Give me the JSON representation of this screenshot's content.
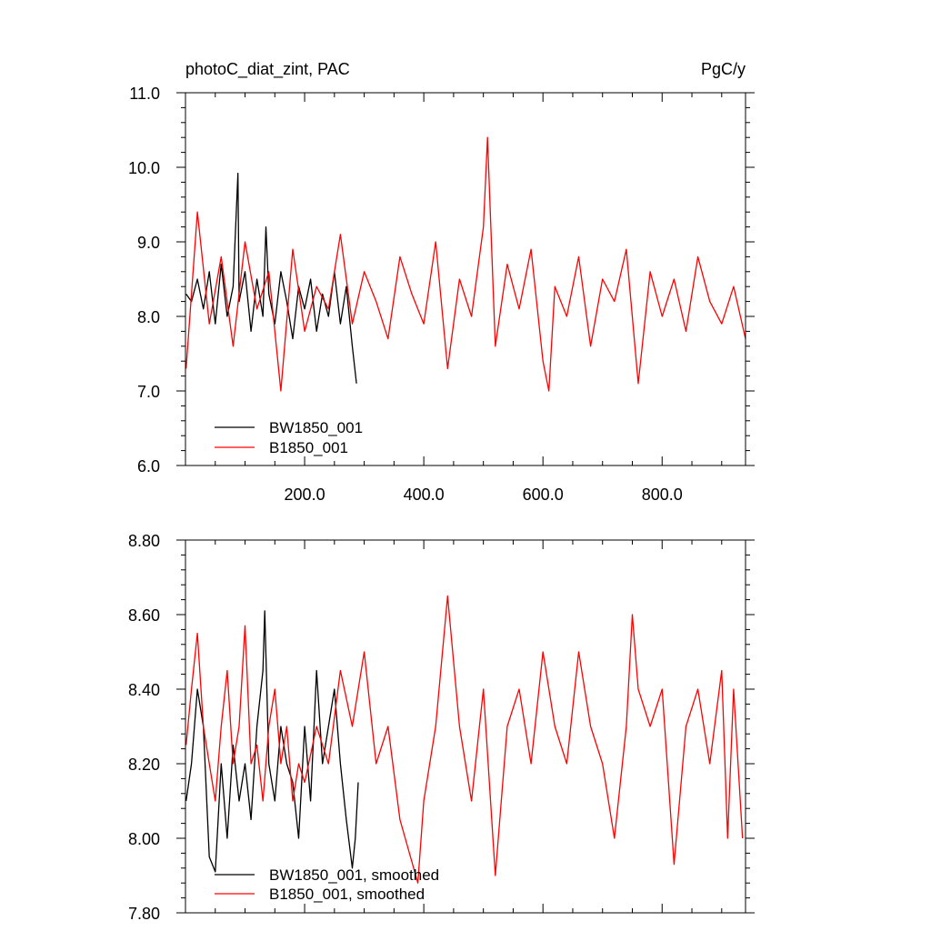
{
  "chart_data": [
    {
      "type": "line",
      "title_left": "photoC_diat_zint, PAC",
      "title_right": "PgC/y",
      "xlim": [
        0,
        940
      ],
      "ylim": [
        6.0,
        11.0
      ],
      "xticks": [
        200,
        400,
        600,
        800
      ],
      "xtick_labels": [
        "200.0",
        "400.0",
        "600.0",
        "800.0"
      ],
      "yticks": [
        6.0,
        7.0,
        8.0,
        9.0,
        10.0,
        11.0
      ],
      "ytick_labels": [
        "6.0",
        "7.0",
        "8.0",
        "9.0",
        "10.0",
        "11.0"
      ],
      "legend": "bottom-left",
      "series": [
        {
          "name": "BW1850_001",
          "color": "#000000",
          "x": [
            1,
            10,
            20,
            30,
            40,
            50,
            60,
            70,
            80,
            88,
            90,
            100,
            110,
            120,
            130,
            135,
            140,
            150,
            160,
            170,
            180,
            190,
            200,
            210,
            220,
            230,
            240,
            250,
            260,
            270,
            280,
            287
          ],
          "values": [
            8.3,
            8.2,
            8.5,
            8.1,
            8.6,
            7.9,
            8.7,
            8.0,
            8.4,
            9.92,
            8.2,
            8.6,
            7.8,
            8.5,
            8.0,
            9.2,
            8.3,
            7.9,
            8.6,
            8.2,
            7.7,
            8.4,
            8.1,
            8.5,
            7.8,
            8.3,
            8.0,
            8.6,
            7.9,
            8.4,
            7.6,
            7.1
          ]
        },
        {
          "name": "B1850_001",
          "color": "#ff0000",
          "x": [
            1,
            20,
            40,
            60,
            80,
            100,
            120,
            140,
            160,
            180,
            200,
            220,
            240,
            260,
            280,
            300,
            320,
            340,
            360,
            380,
            400,
            420,
            440,
            460,
            480,
            500,
            507,
            520,
            540,
            560,
            580,
            600,
            610,
            620,
            640,
            660,
            680,
            700,
            720,
            740,
            760,
            780,
            800,
            820,
            840,
            860,
            880,
            900,
            920,
            940
          ],
          "values": [
            7.3,
            9.4,
            7.9,
            8.8,
            7.6,
            9.0,
            8.1,
            8.6,
            7.0,
            8.9,
            7.8,
            8.4,
            8.1,
            9.1,
            7.9,
            8.6,
            8.2,
            7.7,
            8.8,
            8.3,
            7.9,
            9.0,
            7.3,
            8.5,
            8.0,
            9.2,
            10.4,
            7.6,
            8.7,
            8.1,
            8.9,
            7.4,
            7.0,
            8.4,
            8.0,
            8.8,
            7.6,
            8.5,
            8.2,
            8.9,
            7.1,
            8.6,
            8.0,
            8.5,
            7.8,
            8.8,
            8.2,
            7.9,
            8.4,
            7.7
          ]
        }
      ]
    },
    {
      "type": "line",
      "xlim": [
        0,
        940
      ],
      "ylim": [
        7.8,
        8.8
      ],
      "yticks": [
        7.8,
        8.0,
        8.2,
        8.4,
        8.6,
        8.8
      ],
      "ytick_labels": [
        "7.80",
        "8.00",
        "8.20",
        "8.40",
        "8.60",
        "8.80"
      ],
      "legend": "bottom-left",
      "series": [
        {
          "name": "BW1850_001, smoothed",
          "color": "#000000",
          "x": [
            1,
            10,
            20,
            30,
            40,
            50,
            60,
            70,
            80,
            90,
            100,
            110,
            120,
            130,
            133,
            140,
            150,
            160,
            170,
            180,
            190,
            200,
            210,
            220,
            230,
            240,
            250,
            260,
            270,
            280,
            285,
            290
          ],
          "values": [
            8.1,
            8.2,
            8.4,
            8.3,
            7.95,
            7.91,
            8.2,
            8.0,
            8.25,
            8.1,
            8.2,
            8.05,
            8.3,
            8.45,
            8.61,
            8.2,
            8.1,
            8.3,
            8.2,
            8.15,
            8.0,
            8.3,
            8.1,
            8.45,
            8.2,
            8.3,
            8.4,
            8.2,
            8.05,
            7.92,
            8.0,
            8.15
          ]
        },
        {
          "name": "B1850_001, smoothed",
          "color": "#ff0000",
          "x": [
            1,
            10,
            20,
            30,
            40,
            50,
            60,
            70,
            80,
            90,
            100,
            110,
            120,
            130,
            140,
            150,
            160,
            170,
            180,
            190,
            200,
            220,
            240,
            260,
            280,
            300,
            320,
            340,
            360,
            390,
            400,
            420,
            440,
            460,
            480,
            500,
            520,
            540,
            560,
            580,
            600,
            620,
            640,
            660,
            680,
            700,
            720,
            740,
            750,
            760,
            780,
            800,
            820,
            840,
            860,
            880,
            900,
            910,
            920,
            935
          ],
          "values": [
            8.25,
            8.4,
            8.55,
            8.3,
            8.2,
            8.1,
            8.3,
            8.45,
            8.2,
            8.3,
            8.57,
            8.2,
            8.25,
            8.1,
            8.3,
            8.4,
            8.2,
            8.3,
            8.1,
            8.2,
            8.15,
            8.3,
            8.2,
            8.45,
            8.3,
            8.5,
            8.2,
            8.3,
            8.05,
            7.88,
            8.1,
            8.3,
            8.65,
            8.3,
            8.1,
            8.4,
            7.9,
            8.3,
            8.4,
            8.2,
            8.5,
            8.3,
            8.2,
            8.5,
            8.3,
            8.2,
            8.0,
            8.3,
            8.6,
            8.4,
            8.3,
            8.4,
            7.93,
            8.3,
            8.4,
            8.2,
            8.45,
            8.0,
            8.4,
            8.0
          ]
        }
      ]
    }
  ]
}
